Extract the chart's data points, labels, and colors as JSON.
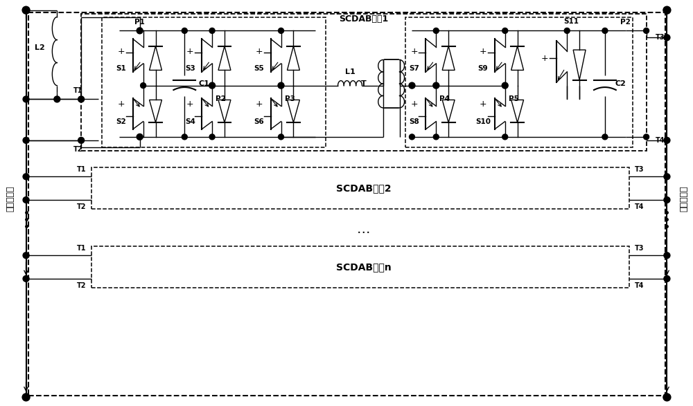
{
  "bg_color": "#ffffff",
  "line_color": "#000000",
  "labels": {
    "unit1": "SCDAB单元1",
    "unit2": "SCDAB单元2",
    "unitn": "SCDAB单元n",
    "left_label": "高压直流侧",
    "right_label": "低压直流侧"
  },
  "figsize": [
    10.0,
    5.87
  ],
  "dpi": 100
}
